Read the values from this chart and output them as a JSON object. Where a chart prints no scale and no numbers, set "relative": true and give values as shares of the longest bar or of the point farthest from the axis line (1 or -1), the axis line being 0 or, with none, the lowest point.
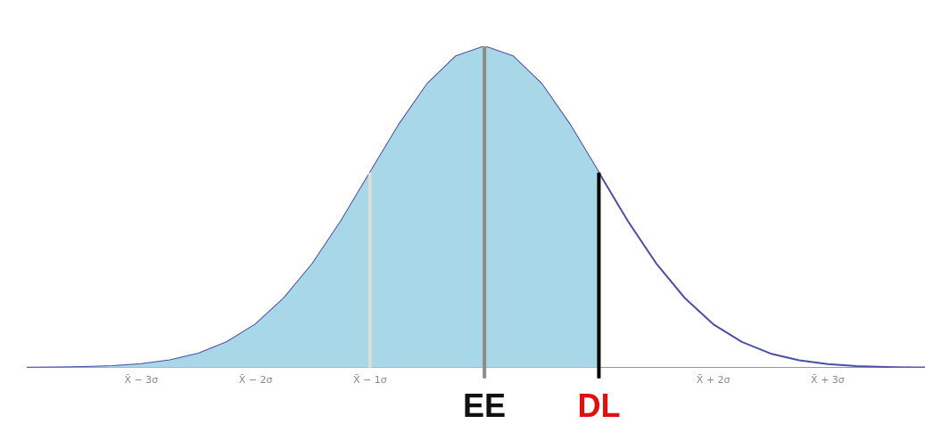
{
  "chart_data": {
    "type": "line",
    "relative": true,
    "grid": false,
    "legend": false,
    "marker": "none",
    "xlim": [
      -4,
      3.85
    ],
    "xticks": [
      {
        "value": -3,
        "label": "X̄ − 3σ"
      },
      {
        "value": -2,
        "label": "X̄ − 2σ"
      },
      {
        "value": -1,
        "label": "X̄ − 1σ"
      },
      {
        "value": 0,
        "label": null
      },
      {
        "value": 1,
        "label": null
      },
      {
        "value": 2,
        "label": "X̄ + 2σ"
      },
      {
        "value": 3,
        "label": "X̄ + 3σ"
      }
    ],
    "tick_labels": "x",
    "series": [
      {
        "type": "area",
        "color": "#a8d8e8",
        "x": [
          -4,
          -3.75,
          -3.5,
          -3.25,
          -3,
          -2.75,
          -2.5,
          -2.25,
          -2,
          -1.75,
          -1.5,
          -1.25,
          -1,
          -0.75,
          -0.5,
          -0.25,
          0,
          0.25,
          0.5,
          0.75,
          1
        ],
        "values": [
          0.0003,
          0.0009,
          0.0022,
          0.0051,
          0.011,
          0.023,
          0.044,
          0.08,
          0.135,
          0.217,
          0.325,
          0.458,
          0.607,
          0.755,
          0.883,
          0.969,
          1,
          0.969,
          0.883,
          0.755,
          0.607
        ]
      },
      {
        "type": "line",
        "color": "#4b4fa8",
        "x": [
          -4,
          -3.75,
          -3.5,
          -3.25,
          -3,
          -2.75,
          -2.5,
          -2.25,
          -2,
          -1.75,
          -1.5,
          -1.25,
          -1,
          -0.75,
          -0.5,
          -0.25,
          0,
          0.25,
          0.5,
          0.75,
          1,
          1.25,
          1.5,
          1.75,
          2,
          2.25,
          2.5,
          2.75,
          3,
          3.25,
          3.5,
          3.75,
          3.85
        ],
        "values": [
          0.0003,
          0.0009,
          0.0022,
          0.0051,
          0.011,
          0.023,
          0.044,
          0.08,
          0.135,
          0.217,
          0.325,
          0.458,
          0.607,
          0.755,
          0.883,
          0.969,
          1,
          0.969,
          0.883,
          0.755,
          0.607,
          0.458,
          0.325,
          0.217,
          0.135,
          0.08,
          0.044,
          0.023,
          0.011,
          0.0051,
          0.0022,
          0.0009,
          0.0006
        ]
      }
    ],
    "ref_lines": [
      {
        "axis": "x",
        "value": -1,
        "label": null,
        "color": "#dcdcdc"
      },
      {
        "axis": "x",
        "value": 0,
        "label": "EE",
        "color": "#8c8c8c"
      },
      {
        "axis": "x",
        "value": 1,
        "label": "DL",
        "color": "#000000"
      }
    ]
  }
}
